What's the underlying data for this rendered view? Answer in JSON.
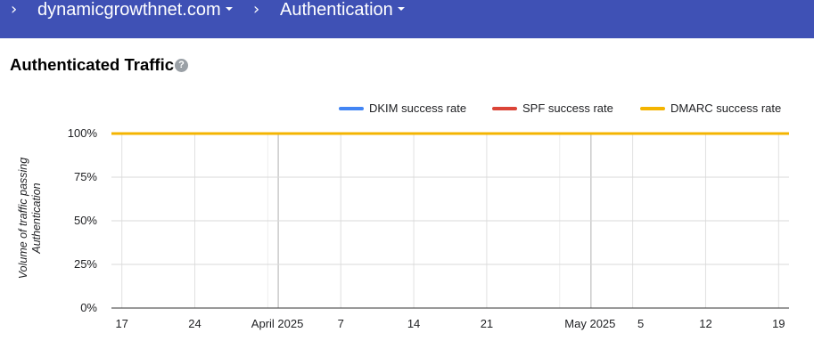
{
  "breadcrumb": {
    "domain": "dynamicgrowthnet.com",
    "section": "Authentication"
  },
  "panel": {
    "title": "Authenticated Traffic"
  },
  "legend": [
    {
      "label": "DKIM success rate",
      "color": "#4285f4"
    },
    {
      "label": "SPF success rate",
      "color": "#db4437"
    },
    {
      "label": "DMARC success rate",
      "color": "#f4b400"
    }
  ],
  "chart_data": {
    "type": "line",
    "ylabel_line1": "Volume of traffic passing",
    "ylabel_line2": "Authentication",
    "ylim": [
      0,
      100
    ],
    "y_ticks": [
      "0%",
      "25%",
      "50%",
      "75%",
      "100%"
    ],
    "x_ticks": [
      "17",
      "24",
      "April 2025",
      "7",
      "14",
      "21",
      "May 2025",
      "5",
      "12",
      "19"
    ],
    "x_range": [
      "2025-03-16",
      "2025-05-20"
    ],
    "grid": true,
    "legend_position": "top-right",
    "series": [
      {
        "name": "DKIM success rate",
        "color": "#4285f4",
        "x": [
          "2025-03-16",
          "2025-05-20"
        ],
        "y": [
          100,
          100
        ]
      },
      {
        "name": "SPF success rate",
        "color": "#db4437",
        "x": [
          "2025-03-16",
          "2025-05-20"
        ],
        "y": [
          100,
          100
        ]
      },
      {
        "name": "DMARC success rate",
        "color": "#f4b400",
        "x": [
          "2025-03-16",
          "2025-05-20"
        ],
        "y": [
          100,
          100
        ]
      }
    ]
  }
}
